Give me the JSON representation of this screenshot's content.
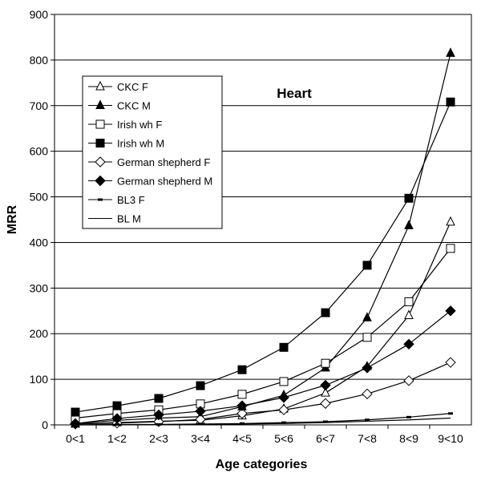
{
  "chart_data": {
    "type": "line",
    "title": "Heart",
    "xlabel": "Age categories",
    "ylabel": "MRR",
    "ylim": [
      0,
      900
    ],
    "yticks": [
      0,
      100,
      200,
      300,
      400,
      500,
      600,
      700,
      800,
      900
    ],
    "grid": true,
    "legend_placement": "top-left",
    "categories": [
      "0<1",
      "1<2",
      "2<3",
      "3<4",
      "4<5",
      "5<6",
      "6<7",
      "7<8",
      "8<9",
      "9<10"
    ],
    "series": [
      {
        "name": "CKC F",
        "marker": "triangle-open",
        "values": [
          2,
          5,
          8,
          10,
          20,
          35,
          70,
          128,
          240,
          445
        ]
      },
      {
        "name": "CKC M",
        "marker": "triangle-filled",
        "values": [
          3,
          10,
          15,
          18,
          40,
          65,
          125,
          235,
          437,
          815
        ]
      },
      {
        "name": "Irish wh F",
        "marker": "square-open",
        "values": [
          15,
          25,
          33,
          46,
          67,
          95,
          135,
          192,
          270,
          387
        ]
      },
      {
        "name": "Irish wh M",
        "marker": "square-filled",
        "values": [
          28,
          42,
          58,
          86,
          121,
          170,
          246,
          350,
          497,
          708
        ]
      },
      {
        "name": "German shepherd F",
        "marker": "diamond-open",
        "values": [
          2,
          4,
          7,
          12,
          25,
          33,
          47,
          68,
          97,
          137
        ]
      },
      {
        "name": "German shepherd M",
        "marker": "diamond-filled",
        "values": [
          3,
          14,
          22,
          30,
          42,
          60,
          87,
          125,
          177,
          250
        ]
      },
      {
        "name": "BL3 F",
        "marker": "dash",
        "values": [
          0,
          1,
          1,
          2,
          3,
          5,
          7,
          11,
          17,
          25
        ]
      },
      {
        "name": "BL M",
        "marker": "none",
        "values": [
          0,
          0,
          1,
          1,
          2,
          3,
          5,
          8,
          11,
          15
        ]
      }
    ]
  }
}
